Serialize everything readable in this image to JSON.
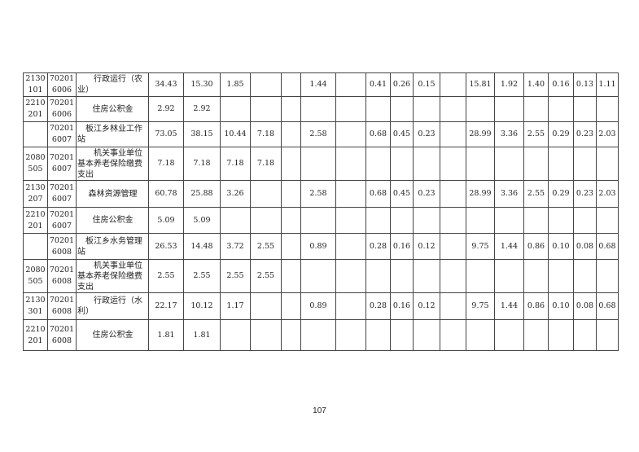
{
  "rows": [
    {
      "func": "2130101",
      "econ": "702016006",
      "name": "　　行政运行（农业）",
      "v": [
        "34.43",
        "15.30",
        "1.85",
        "",
        "",
        "1.44",
        "",
        "0.41",
        "0.26",
        "0.15",
        "",
        "15.81",
        "1.92",
        "1.40",
        "0.16",
        "0.13",
        "1.11"
      ]
    },
    {
      "func": "2210201",
      "econ": "702016006",
      "name": "住房公积金",
      "v": [
        "2.92",
        "2.92",
        "",
        "",
        "",
        "",
        "",
        "",
        "",
        "",
        "",
        "",
        "",
        "",
        "",
        "",
        ""
      ]
    },
    {
      "func": "",
      "econ": "702016007",
      "name": "　板江乡林业工作站",
      "v": [
        "73.05",
        "38.15",
        "10.44",
        "7.18",
        "",
        "2.58",
        "",
        "0.68",
        "0.45",
        "0.23",
        "",
        "28.99",
        "3.36",
        "2.55",
        "0.29",
        "0.23",
        "2.03"
      ]
    },
    {
      "func": "2080505",
      "econ": "702016007",
      "name": "　　机关事业单位基本养老保险缴费支出",
      "v": [
        "7.18",
        "7.18",
        "7.18",
        "7.18",
        "",
        "",
        "",
        "",
        "",
        "",
        "",
        "",
        "",
        "",
        "",
        "",
        ""
      ]
    },
    {
      "func": "2130207",
      "econ": "702016007",
      "name": "森林资源管理",
      "v": [
        "60.78",
        "25.88",
        "3.26",
        "",
        "",
        "2.58",
        "",
        "0.68",
        "0.45",
        "0.23",
        "",
        "28.99",
        "3.36",
        "2.55",
        "0.29",
        "0.23",
        "2.03"
      ]
    },
    {
      "func": "2210201",
      "econ": "702016007",
      "name": "住房公积金",
      "v": [
        "5.09",
        "5.09",
        "",
        "",
        "",
        "",
        "",
        "",
        "",
        "",
        "",
        "",
        "",
        "",
        "",
        "",
        ""
      ]
    },
    {
      "func": "",
      "econ": "702016008",
      "name": "　板江乡水务管理站",
      "v": [
        "26.53",
        "14.48",
        "3.72",
        "2.55",
        "",
        "0.89",
        "",
        "0.28",
        "0.16",
        "0.12",
        "",
        "9.75",
        "1.44",
        "0.86",
        "0.10",
        "0.08",
        "0.68"
      ]
    },
    {
      "func": "2080505",
      "econ": "702016008",
      "name": "　　机关事业单位基本养老保险缴费支出",
      "v": [
        "2.55",
        "2.55",
        "2.55",
        "2.55",
        "",
        "",
        "",
        "",
        "",
        "",
        "",
        "",
        "",
        "",
        "",
        "",
        ""
      ]
    },
    {
      "func": "2130301",
      "econ": "702016008",
      "name": "　　行政运行（水利）",
      "v": [
        "22.17",
        "10.12",
        "1.17",
        "",
        "",
        "0.89",
        "",
        "0.28",
        "0.16",
        "0.12",
        "",
        "9.75",
        "1.44",
        "0.86",
        "0.10",
        "0.08",
        "0.68"
      ]
    },
    {
      "func": "2210201",
      "econ": "702016008",
      "name": "住房公积金",
      "v": [
        "1.81",
        "1.81",
        "",
        "",
        "",
        "",
        "",
        "",
        "",
        "",
        "",
        "",
        "",
        "",
        "",
        "",
        ""
      ]
    }
  ],
  "page_number": "107"
}
